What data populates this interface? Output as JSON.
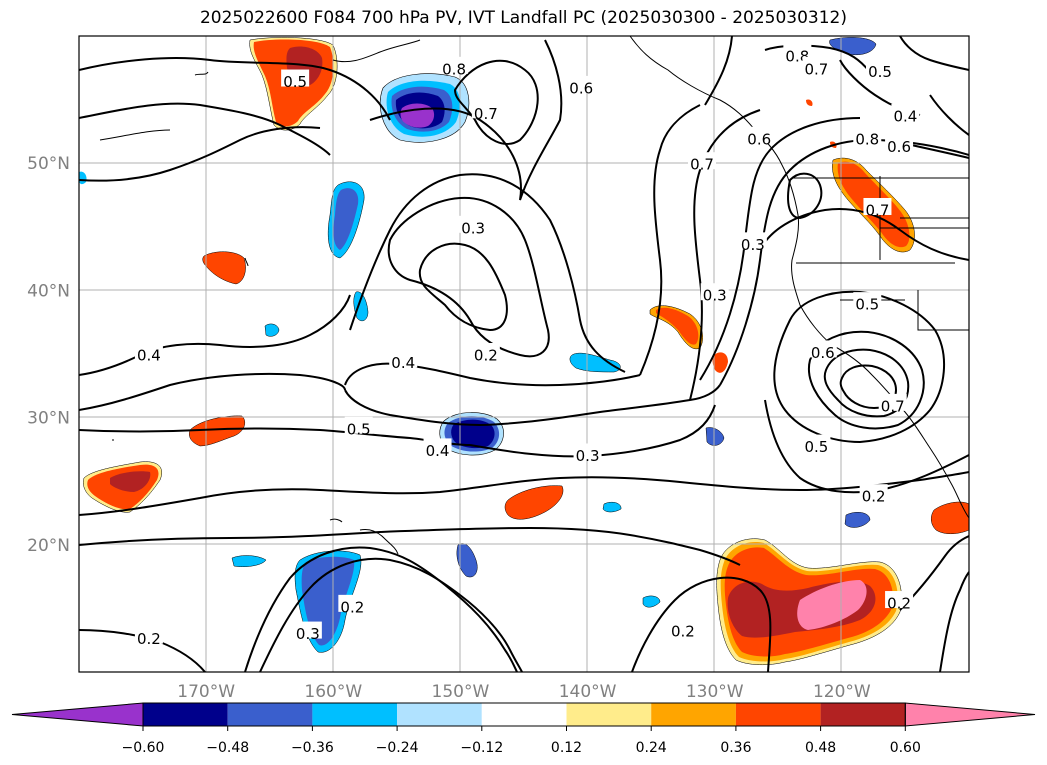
{
  "title": "2025022600 F084 700 hPa PV, IVT Landfall PC (2025030300 - 2025030312)",
  "colors": {
    "grid": "#b0b0b0",
    "contour": "#000000",
    "coast": "#000000",
    "bins": [
      "#9932cc",
      "#00008b",
      "#3a5fcd",
      "#00bfff",
      "#b0e2ff",
      "#ffffff",
      "#ffec8b",
      "#ffa500",
      "#ff4500",
      "#b22222",
      "#ff82ab"
    ]
  },
  "map": {
    "lat_labels": [
      "50°N",
      "40°N",
      "30°N",
      "20°N"
    ],
    "lon_labels": [
      "170°W",
      "160°W",
      "150°W",
      "140°W",
      "130°W",
      "120°W"
    ],
    "contour_labels": [
      {
        "text": "0.8",
        "lon": -150.5,
        "lat": 57.5
      },
      {
        "text": "0.7",
        "lon": -148.0,
        "lat": 54.0
      },
      {
        "text": "0.6",
        "lon": -140.5,
        "lat": 56.0
      },
      {
        "text": "0.5",
        "lon": -163.0,
        "lat": 56.5
      },
      {
        "text": "0.8",
        "lon": -123.5,
        "lat": 58.5
      },
      {
        "text": "0.7",
        "lon": -122.0,
        "lat": 57.5
      },
      {
        "text": "0.5",
        "lon": -117.0,
        "lat": 57.3
      },
      {
        "text": "0.4",
        "lon": -115.0,
        "lat": 53.8
      },
      {
        "text": "0.6",
        "lon": -115.5,
        "lat": 51.4
      },
      {
        "text": "0.8",
        "lon": -118.0,
        "lat": 52.0
      },
      {
        "text": "0.6",
        "lon": -126.5,
        "lat": 52.0
      },
      {
        "text": "0.7",
        "lon": -131.0,
        "lat": 50.0
      },
      {
        "text": "0.7",
        "lon": -117.2,
        "lat": 46.4
      },
      {
        "text": "0.3",
        "lon": -149.0,
        "lat": 45.0
      },
      {
        "text": "0.3",
        "lon": -127.0,
        "lat": 43.7
      },
      {
        "text": "0.3",
        "lon": -130.0,
        "lat": 39.7
      },
      {
        "text": "0.5",
        "lon": -118.0,
        "lat": 39.0
      },
      {
        "text": "0.2",
        "lon": -148.0,
        "lat": 35.0
      },
      {
        "text": "0.4",
        "lon": -154.5,
        "lat": 34.4
      },
      {
        "text": "0.4",
        "lon": -174.5,
        "lat": 35.0
      },
      {
        "text": "0.6",
        "lon": -121.5,
        "lat": 35.2
      },
      {
        "text": "0.7",
        "lon": -116.0,
        "lat": 31.0
      },
      {
        "text": "0.5",
        "lon": -158.0,
        "lat": 29.2
      },
      {
        "text": "0.4",
        "lon": -151.8,
        "lat": 27.5
      },
      {
        "text": "0.5",
        "lon": -122.0,
        "lat": 27.8
      },
      {
        "text": "0.3",
        "lon": -140.0,
        "lat": 27.1
      },
      {
        "text": "0.2",
        "lon": -117.5,
        "lat": 23.9
      },
      {
        "text": "0.2",
        "lon": -158.5,
        "lat": 15.2
      },
      {
        "text": "0.3",
        "lon": -162.0,
        "lat": 13.1
      },
      {
        "text": "0.2",
        "lon": -132.5,
        "lat": 13.3
      },
      {
        "text": "0.2",
        "lon": -115.5,
        "lat": 15.5
      },
      {
        "text": "0.2",
        "lon": -174.5,
        "lat": 12.7
      }
    ]
  },
  "colorbar": {
    "ticks": [
      "−0.60",
      "−0.48",
      "−0.36",
      "−0.24",
      "−0.12",
      "0.12",
      "0.24",
      "0.36",
      "0.48",
      "0.60"
    ]
  }
}
